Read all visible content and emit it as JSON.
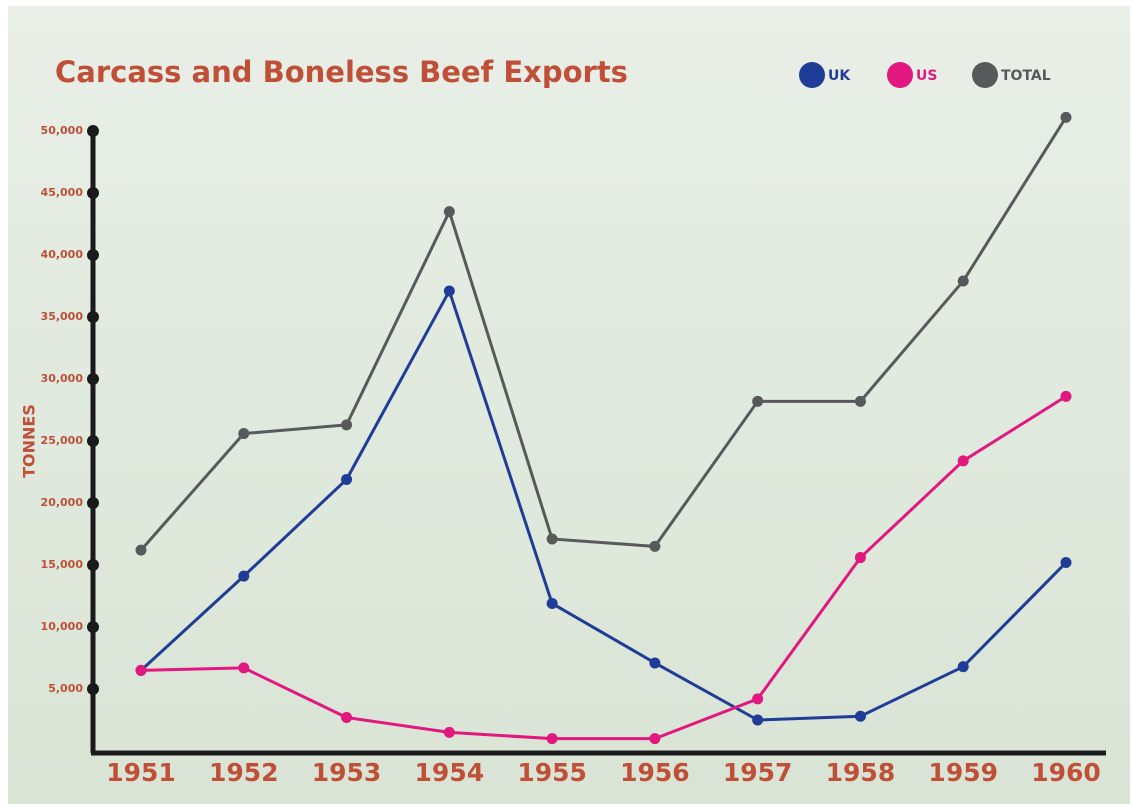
{
  "chart_data": {
    "type": "line",
    "title": "Carcass and Boneless Beef Exports",
    "y_label": "TONNES",
    "categories": [
      "1951",
      "1952",
      "1953",
      "1954",
      "1955",
      "1956",
      "1957",
      "1958",
      "1959",
      "1960"
    ],
    "series": [
      {
        "name": "UK",
        "color": "#1f3d96",
        "values": [
          6500,
          14100,
          21900,
          37100,
          11900,
          7100,
          2500,
          2800,
          6800,
          15200
        ]
      },
      {
        "name": "US",
        "color": "#e0187f",
        "values": [
          6500,
          6700,
          2700,
          1500,
          1000,
          1000,
          4200,
          15600,
          23400,
          28600
        ]
      },
      {
        "name": "TOTAL",
        "color": "#58595b",
        "values": [
          16200,
          25600,
          26300,
          43500,
          17100,
          16500,
          28200,
          28200,
          37900,
          51100
        ]
      }
    ],
    "ylim": [
      0,
      50000
    ],
    "yticks": [
      {
        "value": 5000,
        "label": "5,000"
      },
      {
        "value": 10000,
        "label": "10,000"
      },
      {
        "value": 15000,
        "label": "15,000"
      },
      {
        "value": 20000,
        "label": "20,000"
      },
      {
        "value": 25000,
        "label": "25,000"
      },
      {
        "value": 30000,
        "label": "30,000"
      },
      {
        "value": 35000,
        "label": "35,000"
      },
      {
        "value": 40000,
        "label": "40,000"
      },
      {
        "value": 45000,
        "label": "45,000"
      },
      {
        "value": 50000,
        "label": "50,000"
      }
    ]
  }
}
